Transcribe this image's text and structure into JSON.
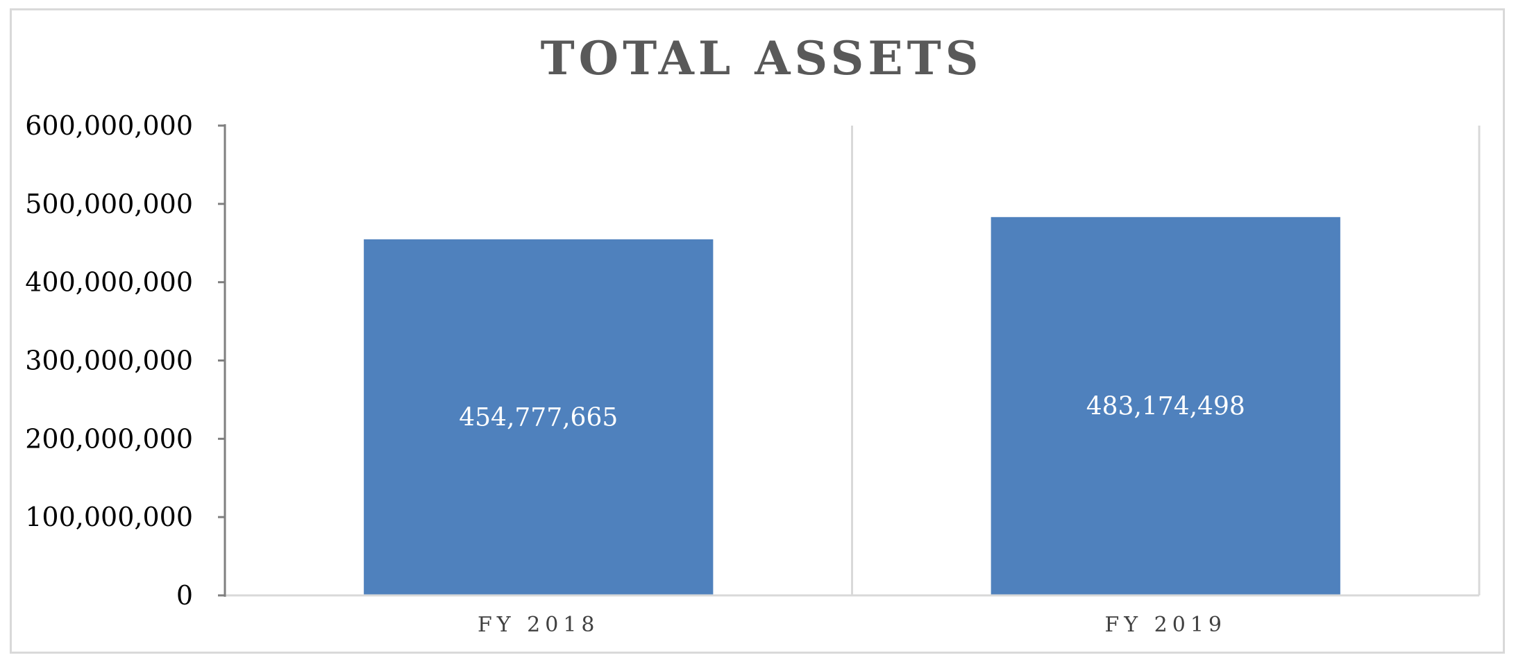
{
  "colors": {
    "bar": "#4f81bd",
    "axis": "#7f7f7f",
    "divider": "#d9d9d9",
    "title": "#595959",
    "bar_label": "#ffffff"
  },
  "chart_data": {
    "type": "bar",
    "title": "TOTAL ASSETS",
    "xlabel": "",
    "ylabel": "",
    "categories": [
      "FY 2018",
      "FY 2019"
    ],
    "values": [
      454777665,
      483174498
    ],
    "data_labels": [
      "454,777,665",
      "483,174,498"
    ],
    "ylim": [
      0,
      600000000
    ],
    "yticks": [
      0,
      100000000,
      200000000,
      300000000,
      400000000,
      500000000,
      600000000
    ],
    "ytick_labels": [
      "0",
      "100,000,000",
      "200,000,000",
      "300,000,000",
      "400,000,000",
      "500,000,000",
      "600,000,000"
    ],
    "grid": false,
    "legend": "none",
    "data_labels_position": "center"
  }
}
